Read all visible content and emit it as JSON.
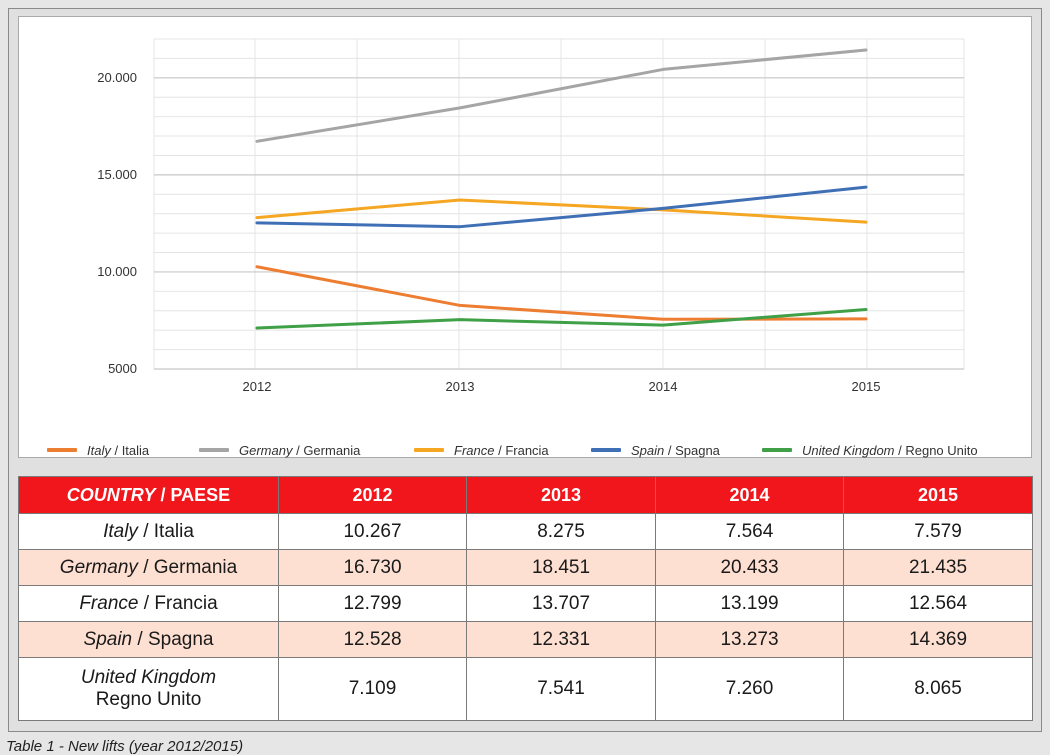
{
  "chart_data": {
    "type": "line",
    "categories": [
      "2012",
      "2013",
      "2014",
      "2015"
    ],
    "ylim": [
      5000,
      22000
    ],
    "yticks": [
      {
        "value": 5000,
        "label": "5000"
      },
      {
        "value": 10000,
        "label": "10.000"
      },
      {
        "value": 15000,
        "label": "15.000"
      },
      {
        "value": 20000,
        "label": "20.000"
      }
    ],
    "series": [
      {
        "name_it": "Italy",
        "name_plain": "Italia",
        "color": "#ed7d31",
        "values": [
          10267,
          8275,
          7564,
          7579
        ]
      },
      {
        "name_it": "Germany",
        "name_plain": "Germania",
        "color": "#a5a5a5",
        "values": [
          16730,
          18451,
          20433,
          21435
        ]
      },
      {
        "name_it": "France",
        "name_plain": "Francia",
        "color": "#f5a623",
        "values": [
          12799,
          13707,
          13199,
          12564
        ]
      },
      {
        "name_it": "Spain",
        "name_plain": "Spagna",
        "color": "#3f6fb5",
        "values": [
          12528,
          12331,
          13273,
          14369
        ]
      },
      {
        "name_it": "United Kingdom",
        "name_plain": "Regno Unito",
        "color": "#3fa047",
        "values": [
          7109,
          7541,
          7260,
          8065
        ]
      }
    ]
  },
  "table": {
    "header": {
      "country_it": "COUNTRY",
      "country_sep": " / ",
      "country_plain": "PAESE",
      "years": [
        "2012",
        "2013",
        "2014",
        "2015"
      ]
    },
    "rows": [
      {
        "it": "Italy",
        "plain": "Italia",
        "values": [
          "10.267",
          "8.275",
          "7.564",
          "7.579"
        ]
      },
      {
        "it": "Germany",
        "plain": "Germania",
        "values": [
          "16.730",
          "18.451",
          "20.433",
          "21.435"
        ]
      },
      {
        "it": "France",
        "plain": "Francia",
        "values": [
          "12.799",
          "13.707",
          "13.199",
          "12.564"
        ]
      },
      {
        "it": "Spain",
        "plain": "Spagna",
        "values": [
          "12.528",
          "12.331",
          "13.273",
          "14.369"
        ]
      },
      {
        "it": "United Kingdom",
        "plain": "Regno Unito",
        "values": [
          "7.109",
          "7.541",
          "7.260",
          "8.065"
        ]
      }
    ]
  },
  "caption": "Table 1 - New lifts (year 2012/2015)"
}
